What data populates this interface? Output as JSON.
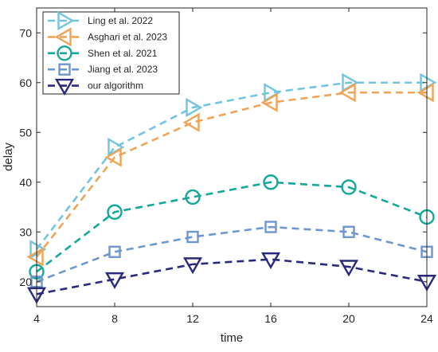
{
  "chart_data": {
    "type": "line",
    "title": "",
    "xlabel": "time",
    "ylabel": "delay",
    "x": [
      4,
      8,
      12,
      16,
      20,
      24
    ],
    "xlim": [
      4,
      24
    ],
    "ylim": [
      15,
      75
    ],
    "xticks": [
      4,
      8,
      12,
      16,
      20,
      24
    ],
    "yticks": [
      20,
      30,
      40,
      50,
      60,
      70
    ],
    "grid": false,
    "legend_position": "top-left",
    "series": [
      {
        "name": "Ling et al. 2022",
        "color": "#72c5e0",
        "marker": "triangle-right",
        "values": [
          26.5,
          47,
          55,
          58,
          60,
          60
        ]
      },
      {
        "name": "Asghari et al. 2023",
        "color": "#f0a457",
        "marker": "triangle-left",
        "values": [
          25,
          45,
          52,
          56,
          58,
          58
        ]
      },
      {
        "name": "Shen et al. 2021",
        "color": "#14a89a",
        "marker": "circle",
        "values": [
          22,
          34,
          37,
          40,
          39,
          33
        ]
      },
      {
        "name": "Jiang et al. 2023",
        "color": "#6f97cf",
        "marker": "square",
        "values": [
          20,
          26,
          29,
          31,
          30,
          26
        ]
      },
      {
        "name": "our algorithm",
        "color": "#2a2a7c",
        "marker": "triangle-down",
        "values": [
          17.5,
          20.5,
          23.5,
          24.5,
          23,
          20
        ]
      }
    ]
  }
}
